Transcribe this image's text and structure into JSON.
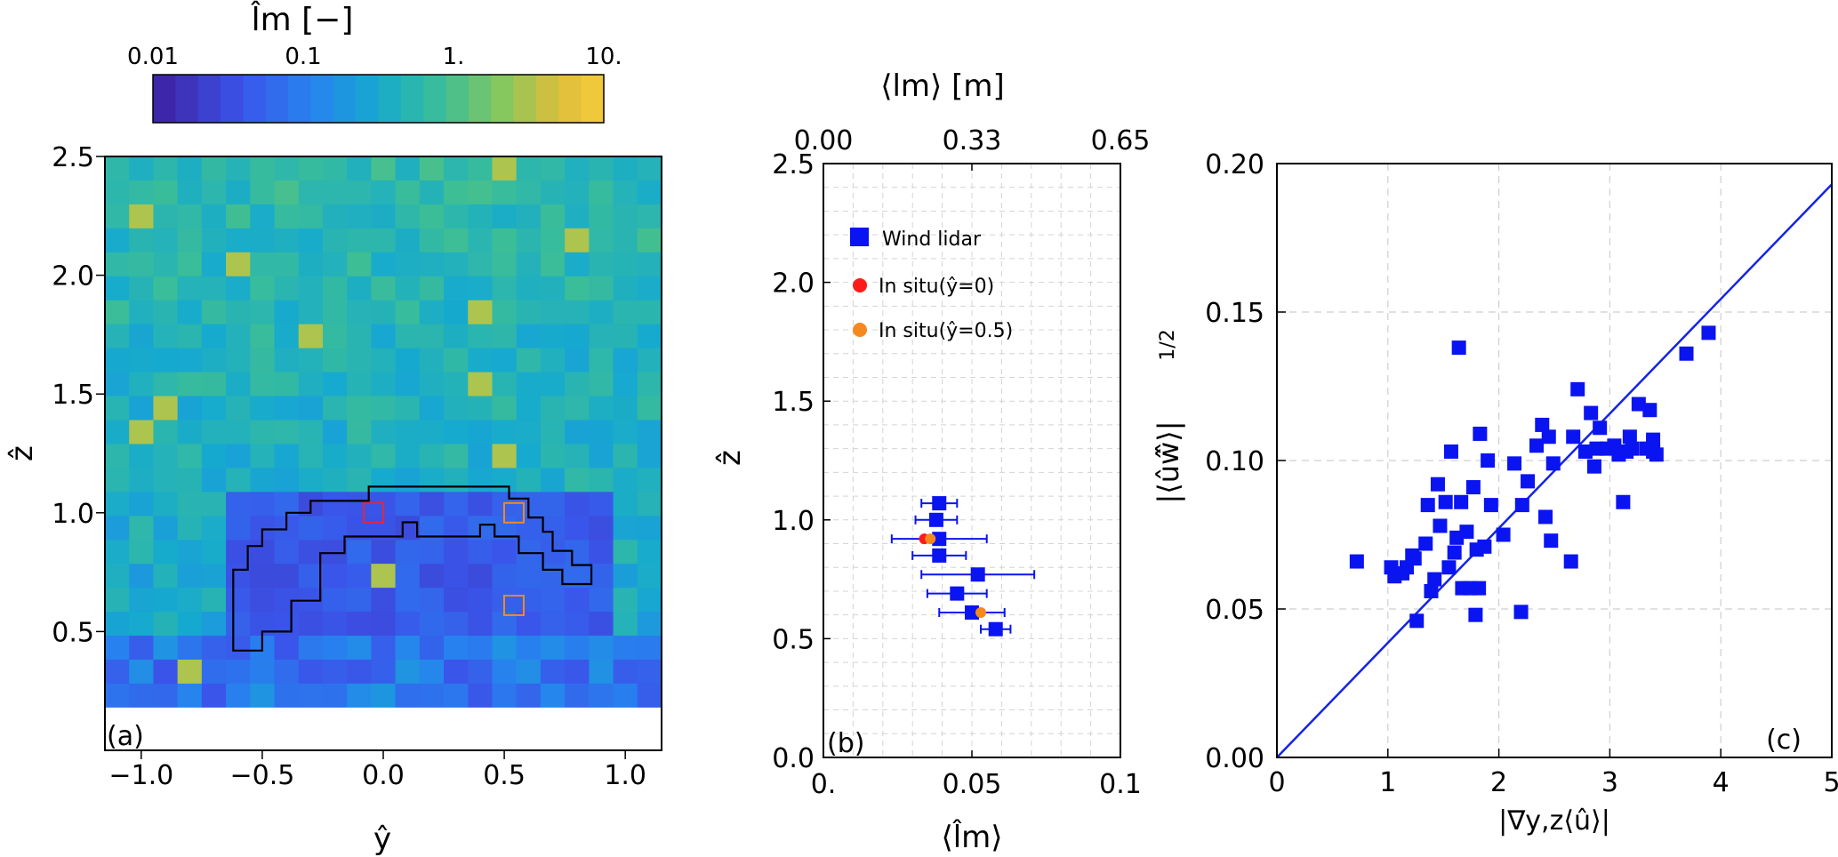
{
  "colors": {
    "marker_blue": "#0a14f0",
    "insitu_red": "#ff1a1a",
    "insitu_orange": "#f5891e",
    "fit_line": "#1424e6",
    "grid": "#cfcfcf"
  },
  "chart_data": [
    {
      "panel": "(a)",
      "type": "heatmap",
      "colorbar": {
        "title": "l̂m [−]",
        "ticks": [
          "0.01",
          "0.1",
          "1.",
          "10."
        ],
        "scale": "log",
        "range": [
          0.01,
          10
        ]
      },
      "xlabel": "ŷ",
      "ylabel": "ẑ",
      "xlim": [
        -1.15,
        1.15
      ],
      "ylim": [
        0.18,
        2.5
      ],
      "xticks": [
        "−1.0",
        "−0.5",
        "0.0",
        "0.5",
        "1.0"
      ],
      "yticks": [
        "0.5",
        "1.0",
        "1.5",
        "2.0",
        "2.5"
      ],
      "grid_size": {
        "cols": 23,
        "rows": 23
      },
      "markers": [
        {
          "y": -0.04,
          "z": 1.0,
          "color": "#e0283c"
        },
        {
          "y": 0.54,
          "z": 1.0,
          "color": "#f5891e"
        },
        {
          "y": 0.54,
          "z": 0.61,
          "color": "#f5891e"
        }
      ],
      "outline_polygon": [
        [
          -0.62,
          0.42
        ],
        [
          -0.5,
          0.42
        ],
        [
          -0.5,
          0.5
        ],
        [
          -0.38,
          0.5
        ],
        [
          -0.38,
          0.63
        ],
        [
          -0.26,
          0.63
        ],
        [
          -0.26,
          0.83
        ],
        [
          -0.16,
          0.83
        ],
        [
          -0.16,
          0.9
        ],
        [
          0.08,
          0.9
        ],
        [
          0.08,
          0.96
        ],
        [
          0.14,
          0.96
        ],
        [
          0.14,
          0.9
        ],
        [
          0.4,
          0.9
        ],
        [
          0.4,
          0.95
        ],
        [
          0.46,
          0.95
        ],
        [
          0.46,
          0.9
        ],
        [
          0.56,
          0.9
        ],
        [
          0.56,
          0.83
        ],
        [
          0.66,
          0.83
        ],
        [
          0.66,
          0.76
        ],
        [
          0.74,
          0.76
        ],
        [
          0.74,
          0.7
        ],
        [
          0.86,
          0.7
        ],
        [
          0.86,
          0.78
        ],
        [
          0.78,
          0.78
        ],
        [
          0.78,
          0.84
        ],
        [
          0.7,
          0.84
        ],
        [
          0.7,
          0.92
        ],
        [
          0.66,
          0.92
        ],
        [
          0.66,
          0.98
        ],
        [
          0.6,
          0.98
        ],
        [
          0.6,
          1.06
        ],
        [
          0.52,
          1.06
        ],
        [
          0.52,
          1.11
        ],
        [
          -0.06,
          1.11
        ],
        [
          -0.06,
          1.05
        ],
        [
          -0.3,
          1.05
        ],
        [
          -0.3,
          1.0
        ],
        [
          -0.4,
          1.0
        ],
        [
          -0.4,
          0.93
        ],
        [
          -0.5,
          0.93
        ],
        [
          -0.5,
          0.86
        ],
        [
          -0.56,
          0.86
        ],
        [
          -0.56,
          0.76
        ],
        [
          -0.62,
          0.76
        ]
      ]
    },
    {
      "panel": "(b)",
      "type": "scatter",
      "xlabel": "⟨l̂m⟩",
      "x2label": "⟨lm⟩  [m]",
      "ylabel": "ẑ",
      "xlim": [
        0,
        0.1
      ],
      "ylim": [
        0,
        2.5
      ],
      "xticks": [
        "0.",
        "0.05",
        "0.1"
      ],
      "x2ticks": [
        "0.00",
        "0.33",
        "0.65"
      ],
      "yticks": [
        "0.0",
        "0.5",
        "1.0",
        "1.5",
        "2.0",
        "2.5"
      ],
      "legend_position": "top-left",
      "series": [
        {
          "name": "Wind lidar",
          "marker": "square",
          "points": [
            {
              "x": 0.039,
              "y": 1.07,
              "xerr": 0.006
            },
            {
              "x": 0.038,
              "y": 1.0,
              "xerr": 0.007
            },
            {
              "x": 0.039,
              "y": 0.92,
              "xerr": 0.016
            },
            {
              "x": 0.039,
              "y": 0.85,
              "xerr": 0.009
            },
            {
              "x": 0.052,
              "y": 0.77,
              "xerr": 0.019
            },
            {
              "x": 0.045,
              "y": 0.69,
              "xerr": 0.01
            },
            {
              "x": 0.05,
              "y": 0.61,
              "xerr": 0.011
            },
            {
              "x": 0.058,
              "y": 0.54,
              "xerr": 0.005
            }
          ]
        },
        {
          "name": "In situ(ŷ=0)",
          "marker": "circle",
          "points": [
            {
              "x": 0.034,
              "y": 0.92
            }
          ]
        },
        {
          "name": "In situ(ŷ=0.5)",
          "marker": "circle",
          "points": [
            {
              "x": 0.036,
              "y": 0.92
            },
            {
              "x": 0.053,
              "y": 0.61
            }
          ]
        }
      ]
    },
    {
      "panel": "(c)",
      "type": "scatter",
      "xlabel": "|∇y,z⟨û⟩|",
      "ylabel": "|⟨ûŵ̂⟩|",
      "ylabel_exponent": "1/2",
      "xlim": [
        0,
        5
      ],
      "ylim": [
        0,
        0.2
      ],
      "xticks": [
        "0",
        "1",
        "2",
        "3",
        "4",
        "5"
      ],
      "yticks": [
        "0.00",
        "0.05",
        "0.10",
        "0.15",
        "0.20"
      ],
      "fit_line": {
        "slope": 0.0386,
        "intercept": 0
      },
      "points": [
        [
          0.72,
          0.066
        ],
        [
          1.03,
          0.064
        ],
        [
          1.06,
          0.061
        ],
        [
          1.13,
          0.062
        ],
        [
          1.17,
          0.064
        ],
        [
          1.22,
          0.068
        ],
        [
          1.24,
          0.067
        ],
        [
          1.26,
          0.046
        ],
        [
          1.34,
          0.072
        ],
        [
          1.36,
          0.085
        ],
        [
          1.39,
          0.056
        ],
        [
          1.42,
          0.06
        ],
        [
          1.45,
          0.092
        ],
        [
          1.47,
          0.078
        ],
        [
          1.52,
          0.086
        ],
        [
          1.55,
          0.064
        ],
        [
          1.57,
          0.103
        ],
        [
          1.6,
          0.069
        ],
        [
          1.62,
          0.074
        ],
        [
          1.64,
          0.138
        ],
        [
          1.66,
          0.086
        ],
        [
          1.67,
          0.057
        ],
        [
          1.71,
          0.076
        ],
        [
          1.74,
          0.057
        ],
        [
          1.77,
          0.091
        ],
        [
          1.79,
          0.048
        ],
        [
          1.8,
          0.07
        ],
        [
          1.82,
          0.057
        ],
        [
          1.83,
          0.109
        ],
        [
          1.87,
          0.071
        ],
        [
          1.9,
          0.1
        ],
        [
          1.93,
          0.085
        ],
        [
          2.04,
          0.075
        ],
        [
          2.14,
          0.099
        ],
        [
          2.2,
          0.049
        ],
        [
          2.21,
          0.085
        ],
        [
          2.26,
          0.093
        ],
        [
          2.34,
          0.105
        ],
        [
          2.39,
          0.112
        ],
        [
          2.42,
          0.081
        ],
        [
          2.45,
          0.108
        ],
        [
          2.47,
          0.073
        ],
        [
          2.49,
          0.099
        ],
        [
          2.65,
          0.066
        ],
        [
          2.67,
          0.108
        ],
        [
          2.71,
          0.124
        ],
        [
          2.78,
          0.103
        ],
        [
          2.83,
          0.116
        ],
        [
          2.86,
          0.098
        ],
        [
          2.88,
          0.104
        ],
        [
          2.91,
          0.111
        ],
        [
          2.97,
          0.104
        ],
        [
          3.04,
          0.105
        ],
        [
          3.08,
          0.102
        ],
        [
          3.12,
          0.086
        ],
        [
          3.15,
          0.103
        ],
        [
          3.18,
          0.108
        ],
        [
          3.2,
          0.104
        ],
        [
          3.26,
          0.119
        ],
        [
          3.33,
          0.104
        ],
        [
          3.36,
          0.117
        ],
        [
          3.39,
          0.103
        ],
        [
          3.39,
          0.107
        ],
        [
          3.42,
          0.102
        ],
        [
          3.69,
          0.136
        ],
        [
          3.89,
          0.143
        ]
      ]
    }
  ]
}
